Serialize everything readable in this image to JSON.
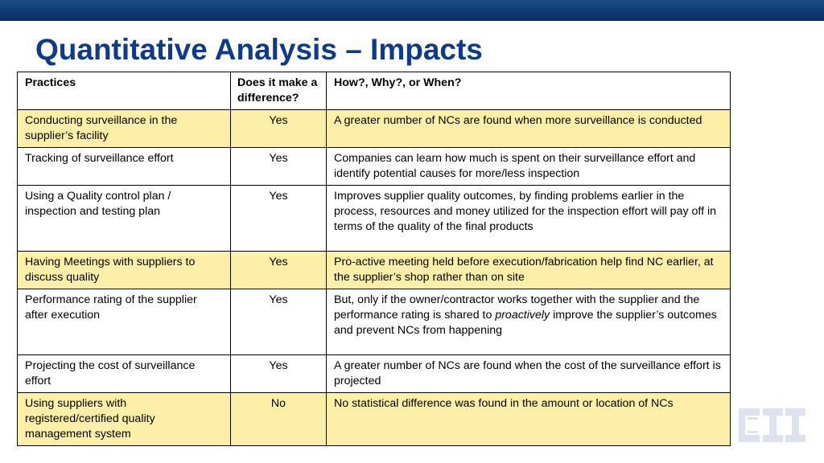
{
  "slide": {
    "title": "Quantitative Analysis – Impacts"
  },
  "table": {
    "headers": [
      "Practices",
      "Does it make a difference?",
      "How?, Why?, or When?"
    ],
    "rows": [
      {
        "practice": "Conducting surveillance in the supplier’s facility",
        "difference": "Yes",
        "how": "A greater number of NCs are found when more surveillance is conducted",
        "highlighted": true
      },
      {
        "practice": "Tracking of surveillance effort",
        "difference": "Yes",
        "how": "Companies can learn how much is spent on their surveillance effort and identify potential causes for more/less inspection",
        "highlighted": false
      },
      {
        "practice": "Using a Quality control plan / inspection and testing plan",
        "difference": "Yes",
        "how": "Improves supplier quality outcomes, by finding problems earlier in the process, resources and money utilized for the inspection effort will pay off in terms of the quality of the final products",
        "highlighted": false
      },
      {
        "practice": "Having Meetings with suppliers to discuss quality",
        "difference": "Yes",
        "how": "Pro-active meeting held before execution/fabrication help find NC earlier,  at the supplier’s shop rather than on site",
        "highlighted": true
      },
      {
        "practice": "Performance rating of the supplier after execution",
        "difference": "Yes",
        "how_before": "But, only if the owner/contractor works together with the supplier and the performance rating is shared to ",
        "how_emphasis": "proactively",
        "how_after": " improve the supplier’s outcomes and prevent NCs from happening",
        "highlighted": false
      },
      {
        "practice": "Projecting the cost of surveillance effort",
        "difference": "Yes",
        "how": "A greater number of NCs are found when the cost of the surveillance effort is projected",
        "highlighted": false
      },
      {
        "practice": "Using suppliers with registered/certified quality management system",
        "difference": "No",
        "how": "No statistical difference was found in the amount or location of NCs",
        "highlighted": true
      }
    ]
  },
  "logo": {
    "text": "CII",
    "color": "#dde3ee"
  }
}
